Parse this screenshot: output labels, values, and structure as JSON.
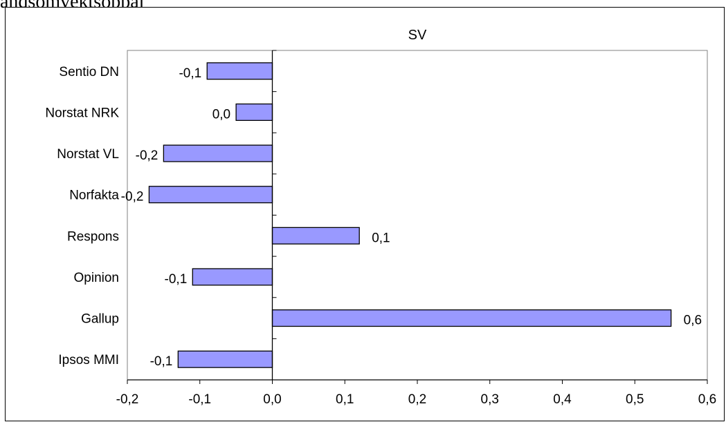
{
  "page": {
    "caption": "andsomvektsoppal"
  },
  "chart_data": {
    "type": "bar",
    "orientation": "horizontal",
    "title": "SV",
    "xlabel": "",
    "ylabel": "",
    "categories": [
      "Sentio DN",
      "Norstat NRK",
      "Norstat VL",
      "Norfakta",
      "Respons",
      "Opinion",
      "Gallup",
      "Ipsos MMI"
    ],
    "values": [
      -0.09,
      -0.05,
      -0.15,
      -0.17,
      0.12,
      -0.11,
      0.55,
      -0.13
    ],
    "data_labels": [
      "-0,1",
      "0,0",
      "-0,2",
      "-0,2",
      "0,1",
      "-0,1",
      "0,6",
      "-0,1"
    ],
    "xlim": [
      -0.2,
      0.6
    ],
    "x_ticks": [
      -0.2,
      -0.1,
      0.0,
      0.1,
      0.2,
      0.3,
      0.4,
      0.5,
      0.6
    ],
    "x_tick_labels": [
      "-0,2",
      "-0,1",
      "0,0",
      "0,1",
      "0,2",
      "0,3",
      "0,4",
      "0,5",
      "0,6"
    ],
    "bar_color": "#9999FF",
    "bar_edge_color": "#000000",
    "plot_border_color": "#808080",
    "grid": false,
    "legend": "none"
  }
}
